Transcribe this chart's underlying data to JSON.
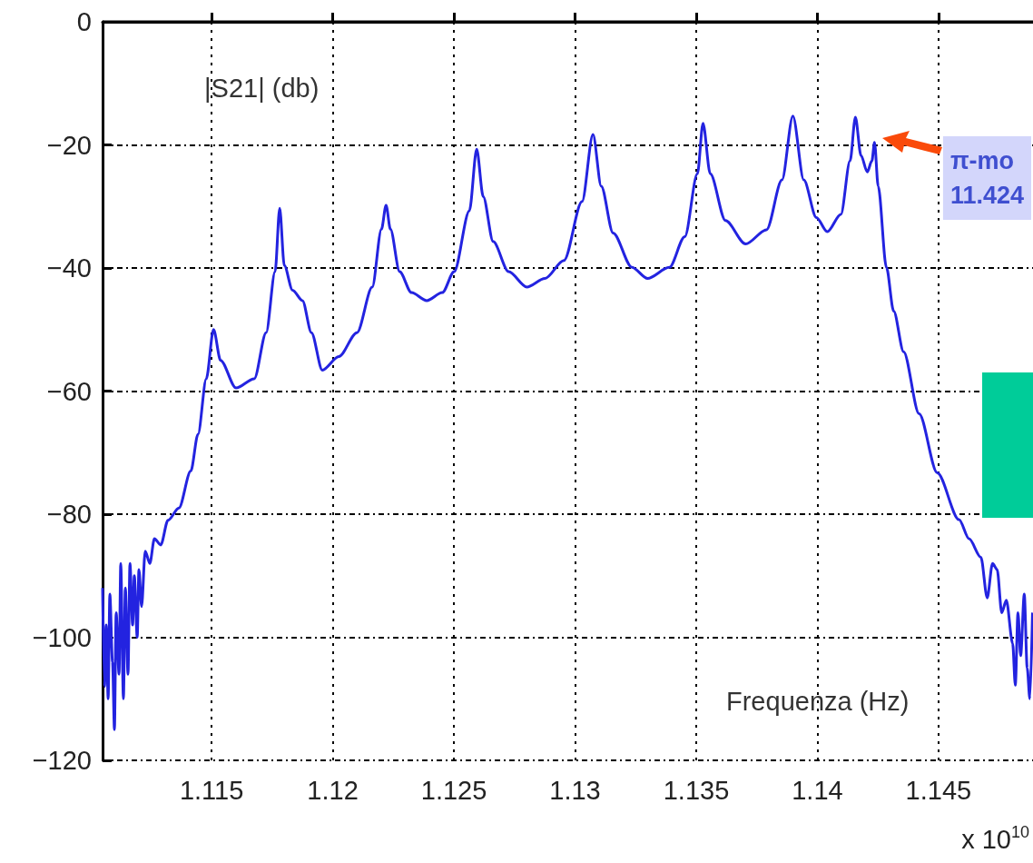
{
  "chart_data": {
    "type": "line",
    "xlabel": "Frequenza (Hz)",
    "ylabel": "|S21| (db)",
    "annotations": [
      "x 10$^{10}$",
      "π-mo\n11.424"
    ],
    "x": [
      1.1105,
      1.11058,
      1.11065,
      1.11073,
      1.1108,
      1.11091,
      1.11099,
      1.11106,
      1.11118,
      1.11125,
      1.11136,
      1.11144,
      1.11155,
      1.11163,
      1.11174,
      1.11181,
      1.11193,
      1.112,
      1.11211,
      1.11226,
      1.11245,
      1.11264,
      1.1129,
      1.1132,
      1.11365,
      1.11414,
      1.11444,
      1.11478,
      1.11508,
      1.11537,
      1.11601,
      1.11676,
      1.11725,
      1.11762,
      1.11781,
      1.118,
      1.11834,
      1.11875,
      1.11912,
      1.11957,
      1.12025,
      1.121,
      1.12163,
      1.12201,
      1.1222,
      1.12238,
      1.12276,
      1.12325,
      1.12388,
      1.12452,
      1.12501,
      1.12564,
      1.12594,
      1.12621,
      1.12662,
      1.12726,
      1.12801,
      1.12876,
      1.12954,
      1.13029,
      1.13074,
      1.13108,
      1.13157,
      1.13235,
      1.13299,
      1.13389,
      1.13453,
      1.13505,
      1.13528,
      1.13558,
      1.13621,
      1.13704,
      1.1379,
      1.13854,
      1.13899,
      1.13944,
      1.13996,
      1.14041,
      1.14097,
      1.14135,
      1.14157,
      1.1418,
      1.14206,
      1.14225,
      1.14236,
      1.14251,
      1.14285,
      1.14315,
      1.14356,
      1.1442,
      1.14495,
      1.14585,
      1.14626,
      1.14675,
      1.14701,
      1.14723,
      1.14742,
      1.14761,
      1.1478,
      1.14806,
      1.14817,
      1.14828,
      1.14839,
      1.14854,
      1.14866,
      1.14877,
      1.14888
    ],
    "series": [
      {
        "color": "#2323e0",
        "values": [
          -92,
          -108,
          -98,
          -110,
          -93,
          -104,
          -115,
          -96,
          -106,
          -88,
          -110,
          -92,
          -106,
          -88,
          -98,
          -90,
          -100,
          -89,
          -95,
          -86,
          -88,
          -84,
          -85,
          -81,
          -79,
          -73,
          -67,
          -58,
          -50,
          -55,
          -59.5,
          -58,
          -50.5,
          -40.6,
          -30.3,
          -39.6,
          -43.6,
          -45.3,
          -50.5,
          -56.6,
          -54.4,
          -50.5,
          -43.1,
          -33.7,
          -29.8,
          -33.7,
          -40.6,
          -44,
          -45.3,
          -44,
          -40.6,
          -30.7,
          -20.7,
          -28.4,
          -35.7,
          -40.6,
          -43.1,
          -41.7,
          -38.8,
          -29.2,
          -18.3,
          -26.7,
          -34.3,
          -39.9,
          -41.7,
          -39.9,
          -34.9,
          -24.7,
          -16.5,
          -24.7,
          -32.3,
          -36.1,
          -33.8,
          -25.7,
          -15.3,
          -25.7,
          -31.8,
          -34.1,
          -31.3,
          -22.6,
          -15.5,
          -21.7,
          -24.4,
          -22.6,
          -19.6,
          -26.7,
          -39.9,
          -47,
          -53.6,
          -63.7,
          -73.3,
          -80.9,
          -84,
          -87,
          -93.6,
          -88,
          -89,
          -96,
          -94,
          -101,
          -107.8,
          -96,
          -103,
          -93,
          -105,
          -110,
          -96
        ]
      }
    ],
    "xlim": [
      1.1105,
      1.1489
    ],
    "ylim": [
      -120,
      0
    ],
    "xticks": [
      1.115,
      1.12,
      1.125,
      1.13,
      1.135,
      1.14,
      1.145
    ],
    "yticks": [
      -120,
      -100,
      -80,
      -60,
      -40,
      -20,
      0
    ],
    "grid": true,
    "marker": "none"
  }
}
